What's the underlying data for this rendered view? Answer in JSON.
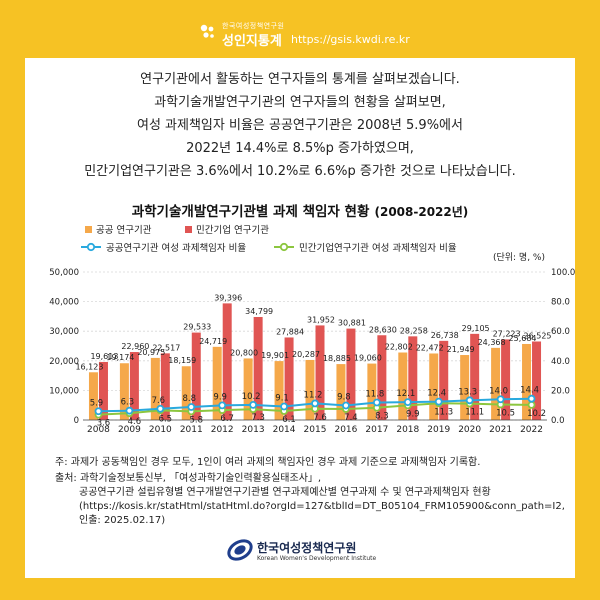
{
  "header": {
    "org_small": "한국여성정책연구원",
    "brand": "성인지통계",
    "url": "https://gsis.kwdi.re.kr"
  },
  "intro": [
    "연구기관에서 활동하는 연구자들의 통계를 살펴보겠습니다.",
    "과학기술개발연구기관의 연구자들의 현황을 살펴보면,",
    "여성 과제책임자 비율은 공공연구기관은 2008년 5.9%에서",
    "2022년 14.4%로 8.5%p 증가하였으며,",
    "민간기업연구기관은 3.6%에서 10.2%로 6.6%p 증가한 것으로 나타났습니다."
  ],
  "chart_data": {
    "type": "bar",
    "title": "과학기술개발연구기관별 과제 책임자 현황",
    "subtitle": "(2008-2022년)",
    "unit_label": "(단위: 명, %)",
    "categories": [
      "2008",
      "2009",
      "2010",
      "2011",
      "2012",
      "2013",
      "2014",
      "2015",
      "2016",
      "2017",
      "2018",
      "2019",
      "2020",
      "2021",
      "2022"
    ],
    "ylim_left": [
      0,
      50000
    ],
    "yticks_left": [
      "0",
      "10,000",
      "20,000",
      "30,000",
      "40,000",
      "50,000"
    ],
    "ylim_right": [
      0,
      100
    ],
    "yticks_right": [
      "0.0",
      "20.0",
      "40.0",
      "60.0",
      "80.0",
      "100.0"
    ],
    "series": [
      {
        "name": "공공 연구기관",
        "kind": "bar",
        "axis": "left",
        "color": "#f5a84a",
        "values": [
          16123,
          19174,
          20975,
          18159,
          24719,
          20800,
          19901,
          20287,
          18885,
          19060,
          22802,
          22472,
          21949,
          24368,
          25684
        ],
        "labels": [
          "16,123",
          "19,174",
          "20,975",
          "18,159",
          "24,719",
          "20,800",
          "19,901",
          "20,287",
          "18,885",
          "19,060",
          "22,802",
          "22,472",
          "21,949",
          "24,368",
          "25,684"
        ]
      },
      {
        "name": "민간기업 연구기관",
        "kind": "bar",
        "axis": "left",
        "color": "#e05553",
        "values": [
          19613,
          22960,
          22517,
          29533,
          39396,
          34799,
          27884,
          31952,
          30881,
          28630,
          28258,
          26738,
          29105,
          27223,
          26525
        ],
        "labels": [
          "19,613",
          "22,960",
          "22,517",
          "29,533",
          "39,396",
          "34,799",
          "27,884",
          "31,952",
          "30,881",
          "28,630",
          "28,258",
          "26,738",
          "29,105",
          "27,223",
          "26,525"
        ]
      },
      {
        "name": "공공연구기관 여성 과제책임자 비율",
        "kind": "line",
        "axis": "right",
        "color": "#29a9de",
        "values": [
          5.9,
          6.3,
          7.6,
          8.8,
          9.9,
          10.2,
          9.1,
          11.2,
          9.8,
          11.8,
          12.1,
          12.4,
          13.3,
          14.0,
          14.4
        ],
        "labels": [
          "5.9",
          "6.3",
          "7.6",
          "8.8",
          "9.9",
          "10.2",
          "9.1",
          "11.2",
          "9.8",
          "11.8",
          "12.1",
          "12.4",
          "13.3",
          "14.0",
          "14.4"
        ]
      },
      {
        "name": "민간기업연구기관 여성 과제책임자 비율",
        "kind": "line",
        "axis": "right",
        "color": "#8cc63f",
        "values": [
          3.6,
          4.6,
          6.5,
          5.8,
          6.7,
          7.3,
          6.1,
          7.6,
          7.4,
          8.3,
          9.9,
          11.3,
          11.1,
          10.5,
          10.2
        ],
        "labels": [
          "3.6",
          "4.6",
          "6.5",
          "5.8",
          "6.7",
          "7.3",
          "6.1",
          "7.6",
          "7.4",
          "8.3",
          "9.9",
          "11.3",
          "11.1",
          "10.5",
          "10.2"
        ]
      }
    ]
  },
  "notes": {
    "note": "주: 과제가 공동책임인 경우 모두, 1인이 여러 과제의 책임자인 경우 과제 기준으로 과제책임자 기록함.",
    "source1": "출처: 과학기술정보통신부, 「여성과학기술인력활용실태조사」,",
    "source2": "공공연구기관 설립유형별 연구개발연구기관별 연구과제예산별 연구과제 수 및 연구과제책임자 현황",
    "source3": "(https://kosis.kr/statHtml/statHtml.do?orgId=127&tblId=DT_B05104_FRM105900&conn_path=I2,",
    "source4": "인출: 2025.02.17)"
  },
  "footer": {
    "org_name": "한국여성정책연구원",
    "org_eng": "Korean Women's Development Institute"
  }
}
